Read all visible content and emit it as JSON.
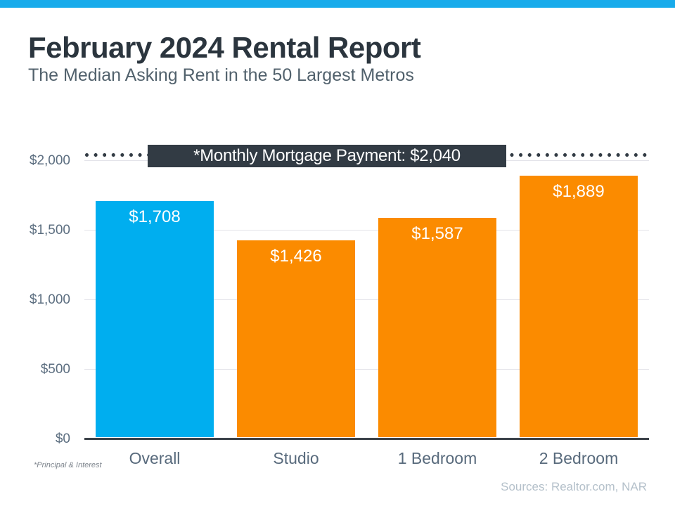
{
  "header": {
    "title": "February 2024 Rental Report",
    "subtitle": "The Median Asking Rent in the 50 Largest Metros"
  },
  "chart_data": {
    "type": "bar",
    "categories": [
      "Overall",
      "Studio",
      "1 Bedroom",
      "2 Bedroom"
    ],
    "values": [
      1708,
      1426,
      1587,
      1889
    ],
    "bar_labels": [
      "$1,708",
      "$1,426",
      "$1,587",
      "$1,889"
    ],
    "bar_colors": [
      "#00AEEF",
      "#FB8B00",
      "#FB8B00",
      "#FB8B00"
    ],
    "y_ticks": [
      {
        "value": 2000,
        "label": "$2,000"
      },
      {
        "value": 1500,
        "label": "$1,500"
      },
      {
        "value": 1000,
        "label": "$1,000"
      },
      {
        "value": 500,
        "label": "$500"
      },
      {
        "value": 0,
        "label": "$0"
      }
    ],
    "ylim": [
      0,
      2100
    ],
    "grid": true,
    "legend": "none",
    "reference_line": {
      "value": 2040,
      "label": "*Monthly Mortgage Payment: $2,040",
      "style": "dotted"
    }
  },
  "footer": {
    "footnote": "*Principal & Interest",
    "sources": "Sources: Realtor.com,  NAR"
  },
  "colors": {
    "top_accent": "#18ABEB",
    "bar_blue": "#00AEEF",
    "bar_orange": "#FB8B00",
    "reference_dark": "#323B44",
    "gridline": "#E3E3E9",
    "baseline": "#3B4249"
  }
}
